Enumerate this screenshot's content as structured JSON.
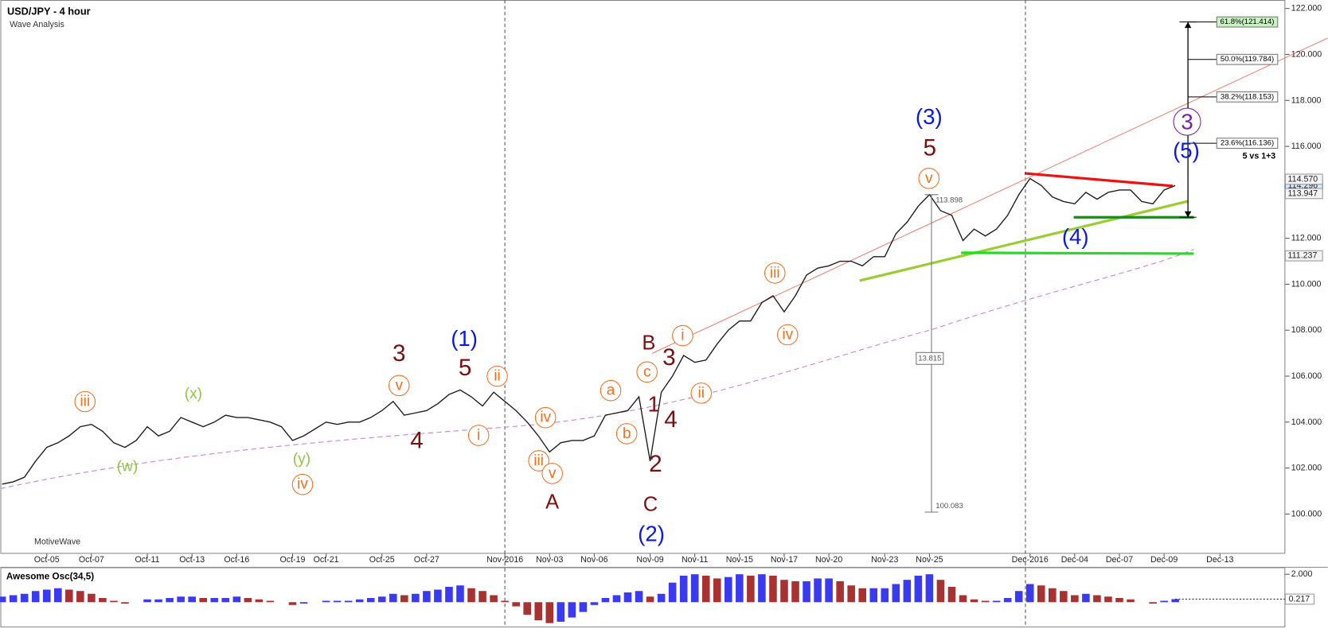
{
  "chart_data": [
    {
      "type": "line",
      "title": "USD/JPY - 4 hour",
      "subtitle": "Wave Analysis",
      "footer": "MotiveWave",
      "color": "#1e1e1e",
      "categories": [
        null,
        null,
        null,
        null,
        "Oct-05",
        null,
        null,
        null,
        "Oct-07",
        null,
        null,
        null,
        null,
        "Oct-11",
        null,
        null,
        null,
        "Oct-13",
        null,
        null,
        null,
        "Oct-16",
        null,
        null,
        null,
        null,
        "Oct-19",
        null,
        null,
        "Oct-21",
        null,
        null,
        null,
        null,
        "Oct-25",
        null,
        null,
        null,
        "Oct-27",
        null,
        null,
        null,
        null,
        null,
        null,
        "Nov-2016",
        null,
        null,
        null,
        "Nov-03",
        null,
        null,
        null,
        "Nov-06",
        null,
        null,
        null,
        null,
        "Nov-09",
        null,
        null,
        null,
        "Nov-11",
        null,
        null,
        null,
        "Nov-15",
        null,
        null,
        null,
        "Nov-17",
        null,
        null,
        null,
        "Nov-20",
        null,
        null,
        null,
        null,
        "Nov-23",
        null,
        null,
        null,
        "Nov-25",
        null,
        null,
        null,
        null,
        null,
        null,
        null,
        null,
        "Dec-2016",
        null,
        null,
        null,
        "Dec-04",
        null,
        null,
        null,
        "Dec-07",
        null,
        null,
        null,
        "Dec-09",
        null,
        null,
        null,
        null,
        "Dec-13"
      ],
      "values": [
        101.3,
        101.4,
        101.6,
        102.3,
        102.9,
        103.1,
        103.4,
        103.8,
        103.9,
        103.6,
        103.1,
        102.9,
        103.2,
        103.8,
        103.4,
        103.6,
        104.2,
        104.0,
        103.8,
        104.0,
        104.3,
        104.2,
        104.2,
        104.1,
        104.0,
        103.8,
        103.2,
        103.4,
        103.7,
        104.0,
        103.9,
        104.0,
        104.0,
        104.2,
        104.5,
        104.9,
        104.3,
        104.4,
        104.5,
        104.8,
        105.2,
        105.4,
        105.1,
        104.7,
        105.3,
        104.9,
        104.5,
        104.0,
        103.4,
        102.7,
        103.1,
        103.2,
        103.2,
        103.4,
        104.3,
        104.4,
        104.5,
        105.1,
        102.3,
        105.3,
        106.0,
        106.9,
        106.6,
        106.7,
        107.4,
        108.0,
        108.4,
        108.4,
        109.2,
        109.5,
        108.8,
        109.5,
        110.4,
        110.7,
        110.8,
        111.0,
        111.0,
        110.8,
        111.2,
        111.2,
        112.2,
        112.7,
        113.4,
        113.9,
        113.2,
        113.0,
        111.9,
        112.4,
        112.1,
        112.4,
        113.0,
        113.9,
        114.6,
        114.3,
        113.8,
        113.6,
        113.5,
        114.0,
        113.7,
        114.0,
        114.1,
        114.1,
        113.6,
        113.5,
        114.1,
        114.296,
        null,
        null,
        null,
        null
      ],
      "ylim": [
        98.27,
        122.37
      ],
      "yticks": [
        {
          "value": 100,
          "label": "100.000"
        },
        {
          "value": 102,
          "label": "102.000"
        },
        {
          "value": 104,
          "label": "104.000"
        },
        {
          "value": 106,
          "label": "106.000"
        },
        {
          "value": 108,
          "label": "108.000"
        },
        {
          "value": 110,
          "label": "110.000"
        },
        {
          "value": 112,
          "label": "112.000"
        },
        {
          "value": 114,
          "label": "114.000"
        },
        {
          "value": 116,
          "label": "116.000"
        },
        {
          "value": 118,
          "label": "118.000"
        },
        {
          "value": 120,
          "label": "120.000"
        },
        {
          "value": 122,
          "label": "122.000"
        }
      ],
      "price_labels": [
        {
          "value": 114.57,
          "label": "114.570"
        },
        113.947,
        111.237
      ],
      "fib_levels": [
        {
          "value": 121.414,
          "label": "61.8%(121.414)"
        },
        {
          "value": 119.784,
          "label": "50.0%(119.784)"
        },
        {
          "value": 118.153,
          "label": "38.2%(118.153)"
        },
        {
          "value": 116.136,
          "label": "23.6%(116.136)"
        }
      ],
      "measure": {
        "from": 113.898,
        "to": 100.083,
        "span": 13.815
      },
      "annotations": [
        {
          "text": "(3)",
          "color": "#0a1adc"
        },
        {
          "text": "5",
          "color": "#7b1010"
        },
        {
          "text": "v",
          "color": "#f07020"
        },
        {
          "text": "(1)",
          "color": "#0a1adc"
        },
        {
          "text": "5",
          "color": "#7b1010"
        },
        {
          "text": "ii",
          "color": "#f07020"
        },
        {
          "text": "3",
          "color": "#7b1010"
        },
        {
          "text": "v",
          "color": "#f07020"
        },
        {
          "text": "4",
          "color": "#7b1010"
        },
        {
          "text": "i",
          "color": "#f07020"
        },
        {
          "text": "iii",
          "color": "#f07020"
        },
        {
          "text": "(x)",
          "color": "#8cc63f"
        },
        {
          "text": "(w)",
          "color": "#8cc63f"
        },
        {
          "text": "(y)",
          "color": "#8cc63f"
        },
        {
          "text": "iv",
          "color": "#f07020"
        },
        {
          "text": "iv",
          "color": "#f07020"
        },
        {
          "text": "iii",
          "color": "#f07020"
        },
        {
          "text": "v",
          "color": "#f07020"
        },
        {
          "text": "A",
          "color": "#7b1010"
        },
        {
          "text": "a",
          "color": "#f07020"
        },
        {
          "text": "b",
          "color": "#f07020"
        },
        {
          "text": "c",
          "color": "#f07020"
        },
        {
          "text": "B",
          "color": "#7b1010"
        },
        {
          "text": "1",
          "color": "#7b1010"
        },
        {
          "text": "2",
          "color": "#7b1010"
        },
        {
          "text": "C",
          "color": "#7b1010"
        },
        {
          "text": "(2)",
          "color": "#0a1adc"
        },
        {
          "text": "i",
          "color": "#f07020"
        },
        {
          "text": "3",
          "color": "#7b1010"
        },
        {
          "text": "ii",
          "color": "#f07020"
        },
        {
          "text": "4",
          "color": "#7b1010"
        },
        {
          "text": "iii",
          "color": "#f07020"
        },
        {
          "text": "iv",
          "color": "#f07020"
        },
        {
          "text": "(4)",
          "color": "#0a1adc"
        },
        {
          "text": "3",
          "color": "#7a1f9e"
        },
        {
          "text": "(5)",
          "color": "#0a1adc"
        },
        {
          "text": "5 vs 1+3",
          "color": "#000000"
        }
      ]
    },
    {
      "type": "bar",
      "title": "Awesome Osc(34,5)",
      "colors": {
        "up": "#3a3af0",
        "down": "#a83232"
      },
      "values": [
        0.4,
        0.5,
        0.6,
        0.8,
        0.9,
        1.0,
        0.9,
        0.8,
        0.6,
        0.3,
        0.1,
        -0.1,
        0.0,
        0.2,
        0.2,
        0.3,
        0.4,
        0.4,
        0.3,
        0.3,
        0.3,
        0.4,
        0.3,
        0.2,
        0.1,
        0.0,
        -0.2,
        -0.1,
        0.0,
        0.1,
        0.1,
        0.1,
        0.2,
        0.3,
        0.4,
        0.6,
        0.5,
        0.6,
        0.8,
        0.9,
        1.1,
        1.2,
        1.0,
        0.8,
        0.5,
        0.1,
        -0.3,
        -0.9,
        -1.3,
        -1.5,
        -1.4,
        -1.1,
        -0.7,
        -0.2,
        0.3,
        0.5,
        0.7,
        0.8,
        0.4,
        0.6,
        1.4,
        1.9,
        2.0,
        1.9,
        1.7,
        1.8,
        2.0,
        1.9,
        2.0,
        1.9,
        1.6,
        1.5,
        1.5,
        1.7,
        1.7,
        1.5,
        1.2,
        1.0,
        1.0,
        1.0,
        1.3,
        1.6,
        1.9,
        2.0,
        1.6,
        1.1,
        0.5,
        0.2,
        0.1,
        0.1,
        0.3,
        0.8,
        1.3,
        1.2,
        1.0,
        0.8,
        0.5,
        0.6,
        0.5,
        0.4,
        0.3,
        0.2,
        0.0,
        -0.1,
        0.1,
        0.217
      ],
      "ylim": [
        -1.8,
        2.5
      ],
      "yticks": [
        {
          "value": 2,
          "label": "2.000"
        }
      ]
    }
  ]
}
